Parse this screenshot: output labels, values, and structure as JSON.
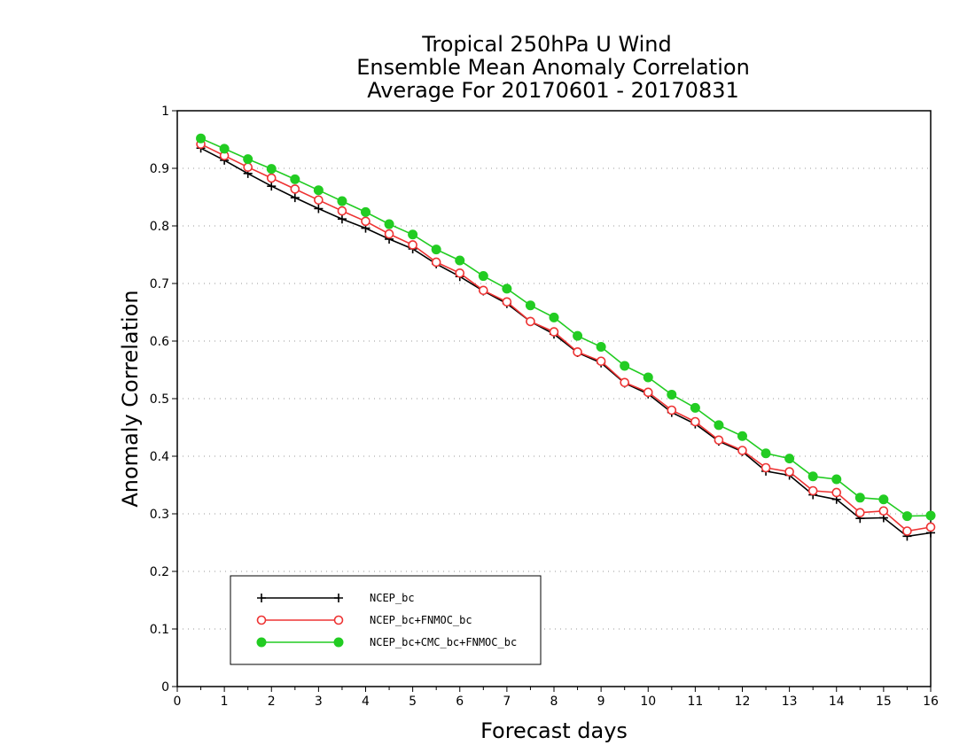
{
  "chart_data": {
    "type": "line",
    "title": [
      "Tropical 250hPa U Wind",
      "Ensemble Mean Anomaly Correlation",
      "Average For 20170601 - 20170831"
    ],
    "xlabel": "Forecast days",
    "ylabel": "Anomaly Correlation",
    "xlim": [
      0,
      16
    ],
    "ylim": [
      0,
      1
    ],
    "xticks": [
      0,
      1,
      2,
      3,
      4,
      5,
      6,
      7,
      8,
      9,
      10,
      11,
      12,
      13,
      14,
      15,
      16
    ],
    "yticks": [
      0,
      0.1,
      0.2,
      0.3,
      0.4,
      0.5,
      0.6,
      0.7,
      0.8,
      0.9,
      1
    ],
    "ytick_labels": [
      "0",
      "0.1",
      "0.2",
      "0.3",
      "0.4",
      "0.5",
      "0.6",
      "0.7",
      "0.8",
      "0.9",
      "1"
    ],
    "grid": "horizontal dotted",
    "legend_position": "bottom-left",
    "x": [
      0.5,
      1,
      1.5,
      2,
      2.5,
      3,
      3.5,
      4,
      4.5,
      5,
      5.5,
      6,
      6.5,
      7,
      7.5,
      8,
      8.5,
      9,
      9.5,
      10,
      10.5,
      11,
      11.5,
      12,
      12.5,
      13,
      13.5,
      14,
      14.5,
      15,
      15.5,
      16
    ],
    "series": [
      {
        "name": "NCEP_bc",
        "color": "#000000",
        "marker": "plus",
        "values": [
          0.935,
          0.914,
          0.891,
          0.869,
          0.849,
          0.83,
          0.812,
          0.796,
          0.777,
          0.76,
          0.734,
          0.712,
          0.687,
          0.665,
          0.634,
          0.612,
          0.58,
          0.562,
          0.527,
          0.508,
          0.476,
          0.456,
          0.426,
          0.408,
          0.374,
          0.367,
          0.333,
          0.325,
          0.292,
          0.293,
          0.261,
          0.267
        ]
      },
      {
        "name": "NCEP_bc+FNMOC_bc",
        "color": "#ee3333",
        "marker": "open-circle",
        "values": [
          0.942,
          0.922,
          0.902,
          0.883,
          0.864,
          0.845,
          0.826,
          0.808,
          0.786,
          0.767,
          0.737,
          0.718,
          0.688,
          0.668,
          0.634,
          0.616,
          0.581,
          0.565,
          0.528,
          0.511,
          0.48,
          0.46,
          0.428,
          0.41,
          0.38,
          0.373,
          0.34,
          0.337,
          0.302,
          0.305,
          0.27,
          0.277
        ]
      },
      {
        "name": "NCEP_bc+CMC_bc+FNMOC_bc",
        "color": "#22cc22",
        "marker": "filled-circle",
        "values": [
          0.952,
          0.934,
          0.916,
          0.899,
          0.881,
          0.862,
          0.843,
          0.824,
          0.803,
          0.785,
          0.759,
          0.74,
          0.713,
          0.691,
          0.662,
          0.641,
          0.609,
          0.59,
          0.557,
          0.537,
          0.507,
          0.484,
          0.454,
          0.435,
          0.405,
          0.396,
          0.365,
          0.36,
          0.328,
          0.325,
          0.296,
          0.297
        ]
      }
    ]
  }
}
